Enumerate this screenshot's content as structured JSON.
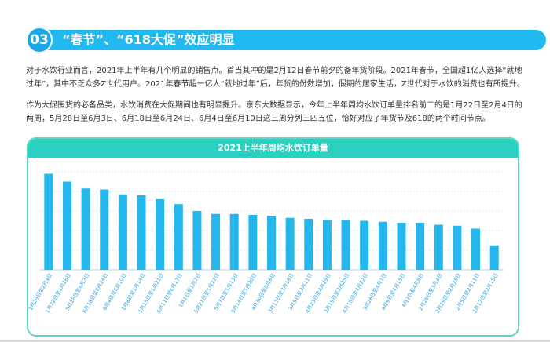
{
  "section": {
    "number": "03",
    "title": "“春节”、“618大促”效应明显"
  },
  "paragraphs": [
    "对于水饮行业而言，2021年上半年有几个明显的销售点。首当其冲的是2月12日春节前夕的备年货阶段。2021年春节，全国超1亿人选择“就地过年”，其中不乏众多Z世代用户。2021年春节超一亿人“就地过年”后，年货的份数增加，假期的居家生活，Z世代对于水饮的消费也有所提升。",
    "作为大促囤货的必备品类，水饮消费在大促期间也有明显提升。京东大数据显示，今年上半年周均水饮订单量排名前二的是1月22日至2月4日的两周，5月28日至6月3日、6月18日至6月24日、6月4日至6月10日这三周分列三四五位，恰好对应了年货节及618的两个时间节点。"
  ],
  "colors": {
    "accent": "#22b8f0",
    "chart_header": "#2ad1c0",
    "bar": "#25b6ec",
    "gridline": "#d4eef8"
  },
  "chart_data": {
    "type": "bar",
    "title": "2021上半年周均水饮订单量",
    "xlabel": "",
    "ylabel": "",
    "grid": true,
    "legend": "none",
    "ylim": [
      0,
      100
    ],
    "categories": [
      "1月29日至2月4日",
      "1月22日至1月28日",
      "5月28日至6月3日",
      "6月18日至6月24日",
      "6月4日至6月10日",
      "1月8日至1月14日",
      "1月15日至1月21日",
      "6月11日至6月17日",
      "1月1日至1月7日",
      "5月21日至5月27日",
      "5月7日至5月13日",
      "5月14日至5月20日",
      "4月30日至5月6日",
      "3月12日至3月18日",
      "3月5日至3月11日",
      "4月23日至4月29日",
      "3月19日至3月25日",
      "4月16日至4月22日",
      "3月26日至4月1日",
      "4月9日至4月15日",
      "4月2日至4月8日",
      "2月26日至3月4日",
      "2月19日至2月25日",
      "2月5日至2月11日",
      "2月12日至2月18日"
    ],
    "values": [
      98,
      90,
      83,
      82,
      77,
      76,
      72,
      67,
      60,
      57,
      57,
      56,
      55,
      53,
      52,
      51,
      51,
      50,
      49,
      48,
      48,
      46,
      45,
      42,
      25
    ]
  }
}
